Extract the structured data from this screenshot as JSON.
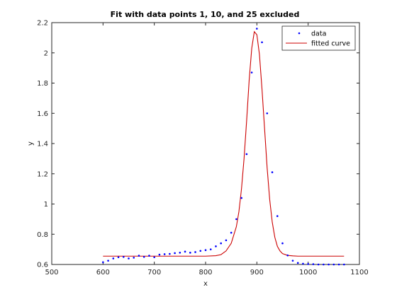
{
  "chart_data": {
    "type": "scatter",
    "title": "Fit with data points 1, 10, and 25 excluded",
    "xlabel": "x",
    "ylabel": "y",
    "xlim": [
      500,
      1100
    ],
    "ylim": [
      0.6,
      2.2
    ],
    "xticks": [
      500,
      600,
      700,
      800,
      900,
      1000,
      1100
    ],
    "xtick_labels": [
      "500",
      "600",
      "700",
      "800",
      "900",
      "1000",
      "1100"
    ],
    "yticks": [
      0.6,
      0.8,
      1.0,
      1.2,
      1.4,
      1.6,
      1.8,
      2.0,
      2.2
    ],
    "ytick_labels": [
      "0.6",
      "0.8",
      "1",
      "1.2",
      "1.4",
      "1.6",
      "1.8",
      "2",
      "2.2"
    ],
    "grid": false,
    "legend_position": "top-right",
    "series": [
      {
        "name": "data",
        "kind": "points",
        "color": "#0000ff",
        "x": [
          600,
          610,
          620,
          630,
          640,
          650,
          660,
          670,
          680,
          690,
          700,
          710,
          720,
          730,
          740,
          750,
          760,
          770,
          780,
          790,
          800,
          810,
          820,
          830,
          840,
          850,
          860,
          870,
          880,
          890,
          900,
          910,
          920,
          930,
          940,
          950,
          960,
          970,
          980,
          990,
          1000,
          1010,
          1020,
          1030,
          1040,
          1050,
          1060,
          1070
        ],
        "y": [
          0.615,
          0.625,
          0.64,
          0.648,
          0.65,
          0.64,
          0.645,
          0.658,
          0.65,
          0.658,
          0.648,
          0.665,
          0.668,
          0.67,
          0.675,
          0.678,
          0.685,
          0.678,
          0.682,
          0.69,
          0.695,
          0.7,
          0.72,
          0.74,
          0.76,
          0.81,
          0.9,
          1.04,
          1.33,
          1.87,
          2.16,
          2.07,
          1.6,
          1.21,
          0.92,
          0.74,
          0.66,
          0.625,
          0.61,
          0.605,
          0.603,
          0.602,
          0.6,
          0.6,
          0.6,
          0.6,
          0.6,
          0.6
        ]
      },
      {
        "name": "fitted curve",
        "kind": "line",
        "color": "#cc0000",
        "x": [
          600,
          700,
          800,
          820,
          830,
          840,
          850,
          860,
          865,
          870,
          875,
          880,
          885,
          890,
          895,
          900,
          905,
          910,
          915,
          920,
          925,
          930,
          935,
          940,
          945,
          950,
          960,
          970,
          980,
          1000,
          1070
        ],
        "y": [
          0.655,
          0.655,
          0.655,
          0.658,
          0.665,
          0.69,
          0.74,
          0.85,
          0.95,
          1.1,
          1.3,
          1.55,
          1.82,
          2.03,
          2.14,
          2.12,
          1.99,
          1.76,
          1.5,
          1.24,
          1.03,
          0.88,
          0.78,
          0.72,
          0.69,
          0.672,
          0.66,
          0.657,
          0.655,
          0.655,
          0.655
        ]
      }
    ]
  }
}
